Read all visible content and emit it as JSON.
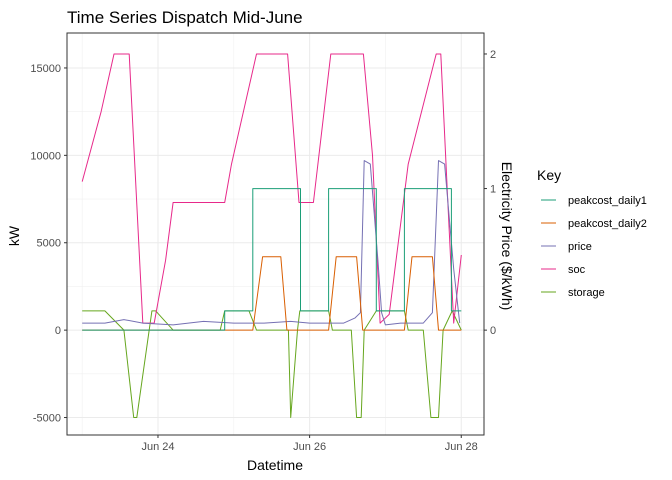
{
  "chart_data": {
    "type": "line",
    "title": "Time Series Dispatch Mid-June",
    "xlabel": "Datetime",
    "ylabel": "kW",
    "y2label": "Electricity Price ($/kWh)",
    "x_ticks": [
      {
        "label": "Jun 24",
        "value": 24
      },
      {
        "label": "Jun 26",
        "value": 26
      },
      {
        "label": "Jun 28",
        "value": 28
      }
    ],
    "xlim": [
      22.8,
      28.3
    ],
    "ylim": [
      -6000,
      17000
    ],
    "y_ticks": [
      -5000,
      0,
      5000,
      10000,
      15000
    ],
    "y2_ticks": [
      {
        "label": "0",
        "value": 0
      },
      {
        "label": "1",
        "value": 8100
      },
      {
        "label": "2",
        "value": 15800
      }
    ],
    "grid": true,
    "legend": {
      "title": "Key",
      "placement": "right",
      "entries": [
        "peakcost_daily1",
        "peakcost_daily2",
        "price",
        "soc",
        "storage"
      ]
    },
    "series": [
      {
        "name": "peakcost_daily1",
        "color": "#1B9E77",
        "x": [
          23.0,
          24.25,
          24.25,
          24.88,
          24.88,
          25.25,
          25.25,
          25.88,
          25.88,
          26.25,
          26.25,
          26.88,
          26.88,
          27.25,
          27.25,
          27.87,
          27.87,
          28.0
        ],
        "y": [
          0,
          0,
          0,
          0,
          1100,
          1100,
          8100,
          8100,
          1100,
          1100,
          8100,
          8100,
          1100,
          1100,
          8100,
          8100,
          1100,
          1100
        ]
      },
      {
        "name": "peakcost_daily2",
        "color": "#D95F02",
        "x": [
          23.0,
          24.88,
          24.88,
          25.25,
          25.25,
          25.38,
          25.45,
          25.62,
          25.7,
          26.25,
          26.25,
          26.35,
          26.43,
          26.62,
          26.7,
          27.25,
          27.25,
          27.35,
          27.43,
          27.62,
          27.7,
          28.0
        ],
        "y": [
          0,
          0,
          0,
          0,
          0,
          4200,
          4200,
          4200,
          0,
          0,
          0,
          4200,
          4200,
          4200,
          0,
          0,
          0,
          4200,
          4200,
          4200,
          0,
          0
        ]
      },
      {
        "name": "price",
        "color": "#7570B3",
        "x": [
          23.0,
          23.3,
          23.55,
          23.8,
          24.2,
          24.6,
          25.0,
          25.4,
          25.75,
          26.0,
          26.2,
          26.45,
          26.6,
          26.67,
          26.72,
          26.8,
          26.9,
          26.95,
          27.0,
          27.2,
          27.5,
          27.62,
          27.7,
          27.78,
          27.9,
          27.98
        ],
        "y": [
          400,
          400,
          600,
          400,
          300,
          500,
          400,
          400,
          500,
          400,
          400,
          400,
          700,
          1000,
          9700,
          9500,
          4000,
          1000,
          300,
          400,
          400,
          1000,
          9700,
          9500,
          3500,
          400
        ]
      },
      {
        "name": "soc",
        "color": "#E7298A",
        "x": [
          23.0,
          23.25,
          23.42,
          23.62,
          23.8,
          23.95,
          24.1,
          24.2,
          24.88,
          24.97,
          25.3,
          25.71,
          25.86,
          26.05,
          26.28,
          26.71,
          26.83,
          26.93,
          27.05,
          27.3,
          27.67,
          27.73,
          27.82,
          27.9,
          28.0
        ],
        "y": [
          8500,
          12500,
          15800,
          15800,
          400,
          400,
          4000,
          7300,
          7300,
          9500,
          15800,
          15800,
          7300,
          7300,
          15800,
          15800,
          10000,
          400,
          900,
          9500,
          15800,
          15800,
          7600,
          400,
          4300
        ]
      },
      {
        "name": "storage",
        "color": "#66A61E",
        "x": [
          23.0,
          23.3,
          23.55,
          23.68,
          23.72,
          23.92,
          23.97,
          24.2,
          24.25,
          24.82,
          24.88,
          25.2,
          25.3,
          25.38,
          25.72,
          25.75,
          25.84,
          25.87,
          26.25,
          26.3,
          26.55,
          26.62,
          26.68,
          26.72,
          26.88,
          27.25,
          27.3,
          27.5,
          27.6,
          27.7,
          27.76,
          27.88,
          28.0
        ],
        "y": [
          1100,
          1100,
          0,
          -5000,
          -5000,
          1100,
          1100,
          0,
          0,
          0,
          1100,
          1100,
          0,
          0,
          0,
          -5000,
          0,
          1100,
          1100,
          0,
          0,
          -5000,
          -5000,
          0,
          1100,
          1100,
          0,
          0,
          -5000,
          -5000,
          0,
          1100,
          0
        ]
      }
    ]
  }
}
